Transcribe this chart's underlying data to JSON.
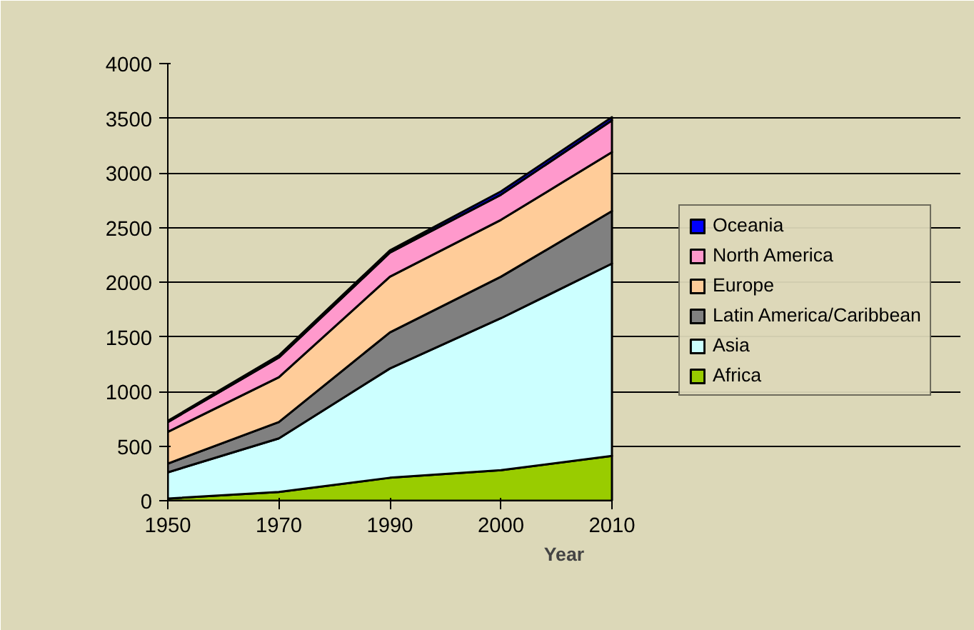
{
  "chart_data": {
    "type": "area",
    "stacked": true,
    "xlabel": "Year",
    "categories": [
      "1950",
      "1970",
      "1990",
      "2000",
      "2010"
    ],
    "series": [
      {
        "name": "Africa",
        "color": "#99cc00",
        "values": [
          20,
          80,
          210,
          280,
          410
        ]
      },
      {
        "name": "Asia",
        "color": "#ccffff",
        "values": [
          240,
          490,
          1000,
          1390,
          1760
        ]
      },
      {
        "name": "Latin America/Caribbean",
        "color": "#808080",
        "values": [
          80,
          150,
          330,
          380,
          480
        ]
      },
      {
        "name": "Europe",
        "color": "#ffcc99",
        "values": [
          290,
          410,
          510,
          520,
          540
        ]
      },
      {
        "name": "North America",
        "color": "#ff99cc",
        "values": [
          90,
          180,
          220,
          230,
          290
        ]
      },
      {
        "name": "Oceania",
        "color": "#0000ff",
        "values": [
          10,
          20,
          20,
          30,
          30
        ]
      }
    ],
    "ylim": [
      0,
      4000
    ],
    "yticks": [
      0,
      500,
      1000,
      1500,
      2000,
      2500,
      3000,
      3500,
      4000
    ],
    "grid": "y",
    "legend": "right"
  }
}
